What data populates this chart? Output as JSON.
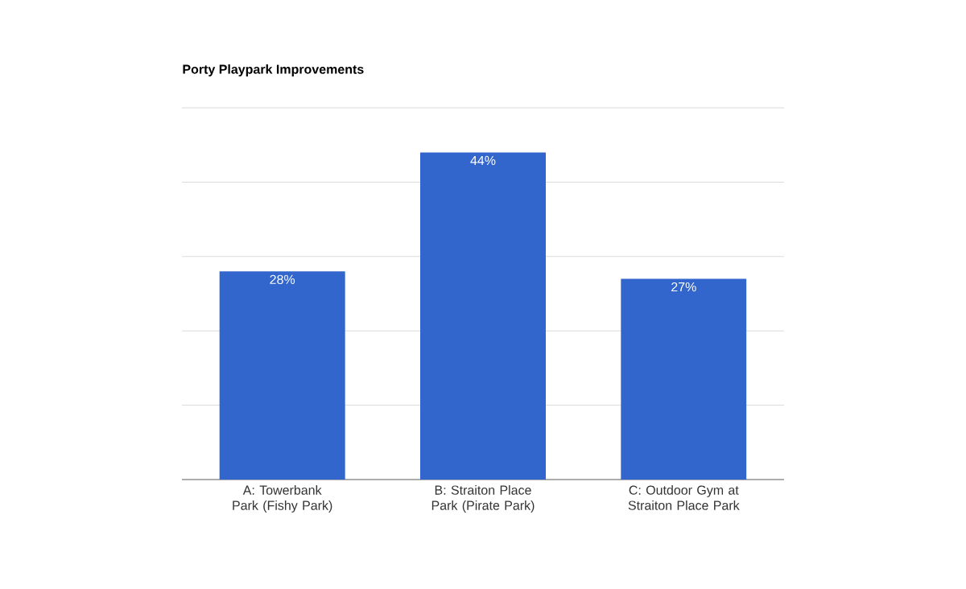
{
  "chart_data": {
    "type": "bar",
    "title": "Porty Playpark Improvements",
    "categories": [
      "A: Towerbank Park (Fishy Park)",
      "B: Straiton Place Park (Pirate Park)",
      "C: Outdoor Gym at Straiton Place Park"
    ],
    "values": [
      28,
      44,
      27
    ],
    "value_labels": [
      "28%",
      "44%",
      "27%"
    ],
    "color": "#3366cc",
    "ylim": [
      0,
      50
    ],
    "yticks": [
      {
        "value": 0,
        "label": null
      },
      {
        "value": 10,
        "label": null
      },
      {
        "value": 20,
        "label": null
      },
      {
        "value": 30,
        "label": null
      },
      {
        "value": 40,
        "label": null
      },
      {
        "value": 50,
        "label": null
      }
    ],
    "tick_labels": "x",
    "grid": "y"
  }
}
